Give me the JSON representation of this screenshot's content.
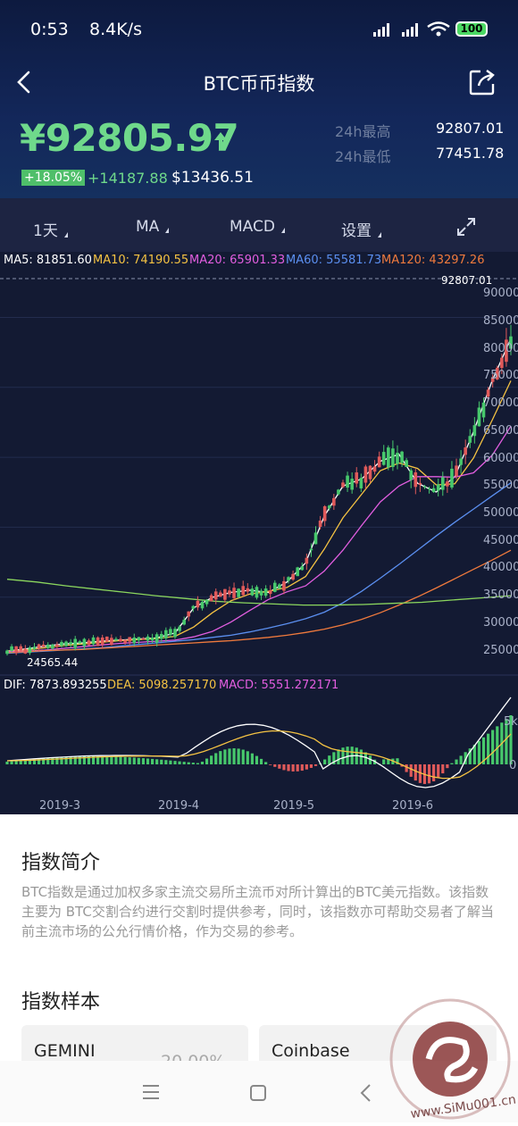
{
  "status_bar": {
    "time": "0:53",
    "speed": "8.4K/s",
    "battery": "100"
  },
  "header": {
    "title": "BTC币币指数"
  },
  "price": {
    "current": "¥92805.97",
    "change_pct": "+18.05%",
    "change_abs": "+14187.88",
    "usd": "$13436.51",
    "high_label": "24h最高",
    "high_value": "92807.01",
    "low_label": "24h最低",
    "low_value": "77451.78"
  },
  "tabs": [
    {
      "label": "1天"
    },
    {
      "label": "MA"
    },
    {
      "label": "MACD"
    },
    {
      "label": "设置"
    }
  ],
  "ma_legend": [
    "MA5: 81851.60",
    "MA10: 74190.55",
    "MA20: 65901.33",
    "MA60: 55581.73",
    "MA120: 43297.26"
  ],
  "colors": {
    "ma5": "#ffffff",
    "ma10": "#f5c343",
    "ma20": "#e25ee0",
    "ma60": "#5b8ff0",
    "ma120": "#f07a3d",
    "long": "#8bd65e",
    "up": "#47c86c",
    "down": "#e05a5a"
  },
  "chart_data": {
    "type": "candlestick",
    "title": "",
    "y_ticks": [
      "90000",
      "85000",
      "80000",
      "75000",
      "70000",
      "65000",
      "60000",
      "55000",
      "50000",
      "45000",
      "40000",
      "35000",
      "30000",
      "25000"
    ],
    "x_ticks": [
      "2019-3",
      "2019-4",
      "2019-5",
      "2019-6"
    ],
    "max_label": "92807.01",
    "min_label": "24565.44",
    "ylim": [
      22000,
      92807
    ],
    "series": [
      {
        "name": "MA5",
        "values": [
          24900,
          25300,
          25800,
          26200,
          26400,
          26700,
          26900,
          27100,
          27300,
          28200,
          32800,
          34700,
          35600,
          36000,
          35600,
          37500,
          41000,
          49500,
          55000,
          56300,
          59500,
          60800,
          55500,
          53900,
          56700,
          64900,
          74200,
          81852
        ]
      },
      {
        "name": "MA10",
        "values": [
          24900,
          25100,
          25500,
          25900,
          26200,
          26500,
          26800,
          27000,
          27200,
          27600,
          29300,
          31900,
          34100,
          35300,
          35800,
          36500,
          38500,
          43500,
          49200,
          53500,
          57800,
          59200,
          58200,
          55200,
          55400,
          60100,
          67000,
          74191
        ]
      },
      {
        "name": "MA20",
        "values": [
          24800,
          24900,
          25100,
          25400,
          25700,
          26000,
          26300,
          26500,
          26700,
          26900,
          27500,
          28500,
          30200,
          32300,
          34300,
          35700,
          36800,
          39500,
          43300,
          47800,
          52100,
          55000,
          56700,
          56700,
          56600,
          57400,
          60600,
          65901
        ]
      },
      {
        "name": "MA60",
        "values": [
          24500,
          24700,
          24900,
          25100,
          25300,
          25500,
          25800,
          26100,
          26400,
          26700,
          27000,
          27400,
          27800,
          28400,
          29100,
          29900,
          30800,
          32000,
          33700,
          35800,
          38200,
          40700,
          43300,
          45900,
          48400,
          50800,
          53200,
          55582
        ]
      },
      {
        "name": "MA120",
        "values": [
          24600,
          24800,
          25000,
          25100,
          25200,
          25400,
          25600,
          25800,
          26000,
          26200,
          26400,
          26600,
          26800,
          27100,
          27400,
          27800,
          28300,
          28900,
          29700,
          30700,
          31900,
          33300,
          34800,
          36400,
          38100,
          39800,
          41500,
          43297
        ]
      }
    ],
    "macd": {
      "dif": "7873.893255",
      "dea": "5098.257170",
      "macd": "5551.272171",
      "ytick_top": "5k",
      "ytick_zero": "0"
    }
  },
  "intro": {
    "title": "指数简介",
    "text": "BTC指数是通过加权多家主流交易所主流币对所计算出的BTC美元指数。该指数主要为 BTC交割合约进行交割时提供参考，同时，该指数亦可帮助交易者了解当前主流市场的公允行情价格，作为交易的参考。"
  },
  "samples": {
    "title": "指数样本",
    "cards": [
      {
        "name": "GEMINI",
        "pct": "20.00%"
      },
      {
        "name": "Coinbase"
      }
    ]
  },
  "watermark": {
    "text": "www.SiMu001.cn"
  }
}
